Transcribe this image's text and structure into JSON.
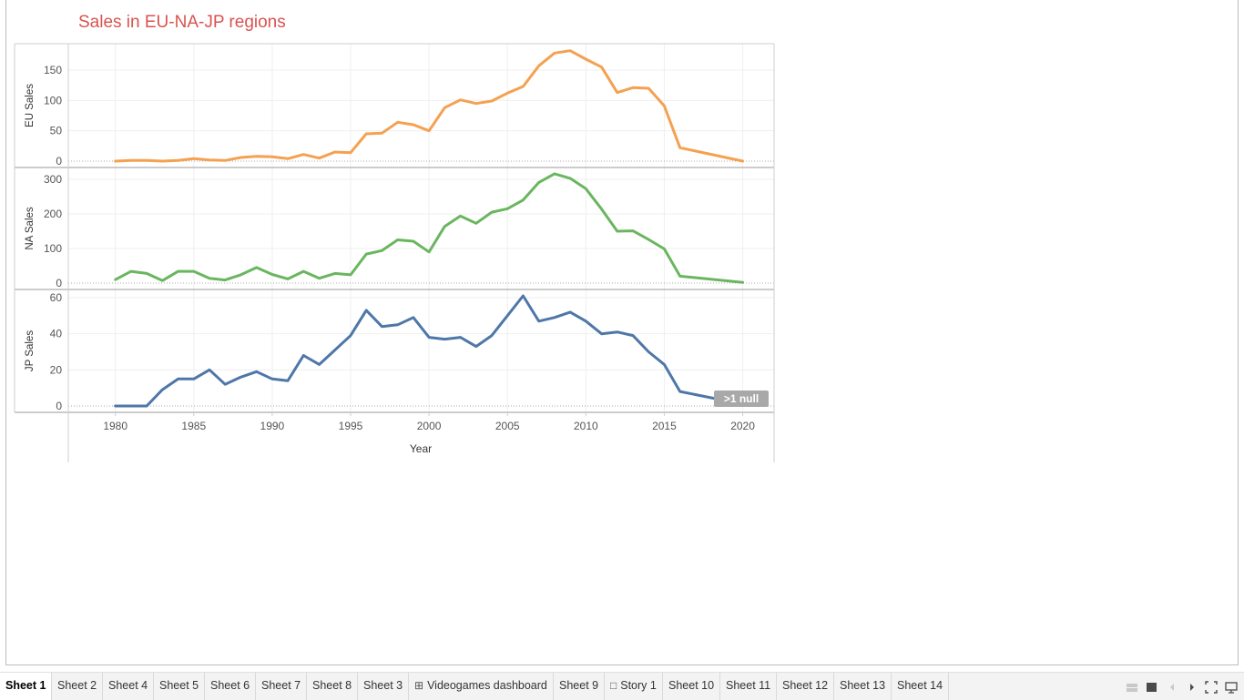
{
  "title": "Sales in EU-NA-JP regions",
  "null_badge": ">1 null",
  "chart_data": {
    "type": "line",
    "x_label": "Year",
    "x_range": [
      1977,
      2022
    ],
    "x_ticks": [
      1980,
      1985,
      1990,
      1995,
      2000,
      2005,
      2010,
      2015,
      2020
    ],
    "grid": true,
    "panels": [
      {
        "name": "EU Sales",
        "y_label": "EU Sales",
        "color": "#f4a150",
        "y_ticks": [
          0,
          50,
          100,
          150
        ],
        "x": [
          1980,
          1981,
          1982,
          1983,
          1984,
          1985,
          1986,
          1987,
          1988,
          1989,
          1990,
          1991,
          1992,
          1993,
          1994,
          1995,
          1996,
          1997,
          1998,
          1999,
          2000,
          2001,
          2002,
          2003,
          2004,
          2005,
          2006,
          2007,
          2008,
          2009,
          2010,
          2011,
          2012,
          2013,
          2014,
          2015,
          2016,
          2020
        ],
        "y": [
          0,
          1,
          1,
          0,
          1,
          4,
          2,
          1,
          6,
          8,
          7,
          4,
          11,
          5,
          15,
          14,
          45,
          46,
          64,
          60,
          50,
          88,
          101,
          95,
          99,
          112,
          123,
          157,
          178,
          182,
          168,
          155,
          113,
          121,
          120,
          91,
          22,
          0
        ]
      },
      {
        "name": "NA Sales",
        "y_label": "NA Sales",
        "color": "#6ab65f",
        "y_ticks": [
          0,
          100,
          200,
          300
        ],
        "x": [
          1980,
          1981,
          1982,
          1983,
          1984,
          1985,
          1986,
          1987,
          1988,
          1989,
          1990,
          1991,
          1992,
          1993,
          1994,
          1995,
          1996,
          1997,
          1998,
          1999,
          2000,
          2001,
          2002,
          2003,
          2004,
          2005,
          2006,
          2007,
          2008,
          2009,
          2010,
          2011,
          2012,
          2013,
          2014,
          2015,
          2016,
          2020
        ],
        "y": [
          10,
          34,
          28,
          7,
          34,
          34,
          14,
          9,
          24,
          45,
          25,
          12,
          34,
          14,
          28,
          24,
          84,
          94,
          125,
          121,
          90,
          164,
          194,
          173,
          205,
          215,
          240,
          291,
          316,
          303,
          273,
          214,
          150,
          151,
          126,
          99,
          20,
          2
        ]
      },
      {
        "name": "JP Sales",
        "y_label": "JP Sales",
        "color": "#4e77a8",
        "y_ticks": [
          0,
          20,
          40,
          60
        ],
        "x": [
          1980,
          1981,
          1982,
          1983,
          1984,
          1985,
          1986,
          1987,
          1988,
          1989,
          1990,
          1991,
          1992,
          1993,
          1994,
          1995,
          1996,
          1997,
          1998,
          1999,
          2000,
          2001,
          2002,
          2003,
          2004,
          2005,
          2006,
          2007,
          2008,
          2009,
          2010,
          2011,
          2012,
          2013,
          2014,
          2015,
          2016,
          2020
        ],
        "y": [
          0,
          0,
          0,
          9,
          15,
          15,
          20,
          12,
          16,
          19,
          15,
          14,
          28,
          23,
          31,
          39,
          53,
          44,
          45,
          49,
          38,
          37,
          38,
          33,
          39,
          50,
          61,
          47,
          49,
          52,
          47,
          40,
          41,
          39,
          30,
          23,
          8,
          1
        ]
      }
    ]
  },
  "tabs": [
    {
      "label": "Sheet 1",
      "active": true
    },
    {
      "label": "Sheet 2"
    },
    {
      "label": "Sheet 4"
    },
    {
      "label": "Sheet 5"
    },
    {
      "label": "Sheet 6"
    },
    {
      "label": "Sheet 7"
    },
    {
      "label": "Sheet 8"
    },
    {
      "label": "Sheet 3"
    },
    {
      "label": "Videogames dashboard",
      "icon": "dashboard-icon"
    },
    {
      "label": "Sheet 9"
    },
    {
      "label": "Story 1",
      "icon": "story-icon"
    },
    {
      "label": "Sheet 10"
    },
    {
      "label": "Sheet 11"
    },
    {
      "label": "Sheet 12"
    },
    {
      "label": "Sheet 13"
    },
    {
      "label": "Sheet 14"
    }
  ],
  "controls": [
    "show-filmstrip-icon",
    "show-tabs-icon",
    "prev-sheet-icon",
    "next-sheet-icon",
    "fit-icon",
    "presentation-mode-icon"
  ]
}
